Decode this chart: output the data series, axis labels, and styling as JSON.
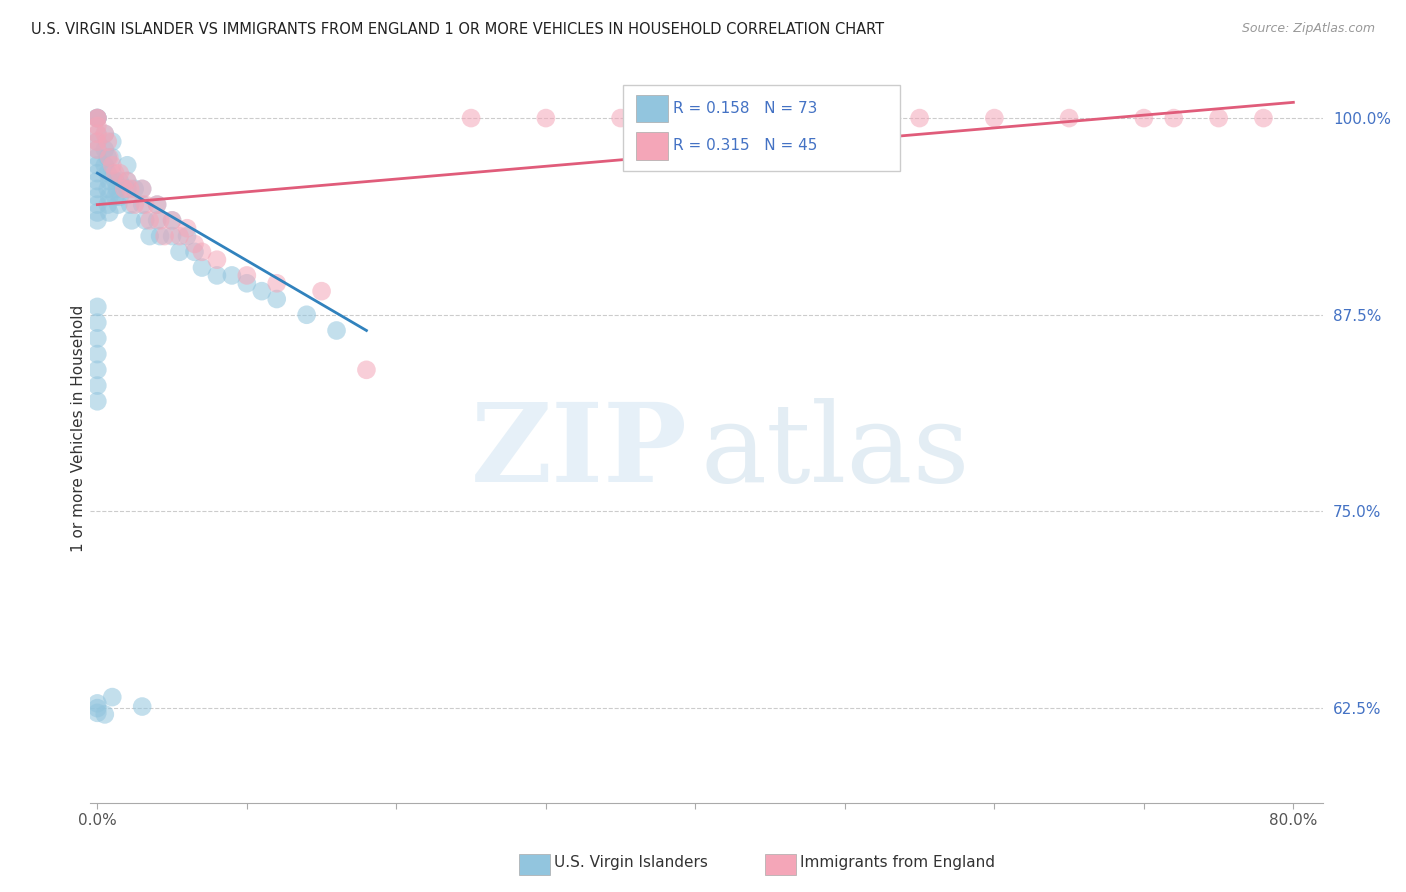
{
  "title": "U.S. VIRGIN ISLANDER VS IMMIGRANTS FROM ENGLAND 1 OR MORE VEHICLES IN HOUSEHOLD CORRELATION CHART",
  "source": "Source: ZipAtlas.com",
  "ylabel": "1 or more Vehicles in Household",
  "ytick_values": [
    0.625,
    0.75,
    0.875,
    1.0
  ],
  "ytick_labels": [
    "62.5%",
    "75.0%",
    "87.5%",
    "100.0%"
  ],
  "xlim": [
    -0.005,
    0.82
  ],
  "ylim": [
    0.565,
    1.04
  ],
  "blue_color": "#92c5de",
  "pink_color": "#f4a6b8",
  "blue_line_color": "#3182bd",
  "pink_line_color": "#e05c7a",
  "legend_R1": "0.158",
  "legend_N1": "73",
  "legend_R2": "0.315",
  "legend_N2": "45",
  "watermark_zip": "ZIP",
  "watermark_atlas": "atlas",
  "blue_scatter_x": [
    0.0,
    0.0,
    0.0,
    0.0,
    0.0,
    0.0,
    0.0,
    0.0,
    0.0,
    0.0,
    0.0,
    0.0,
    0.0,
    0.0,
    0.0,
    0.005,
    0.005,
    0.005,
    0.007,
    0.007,
    0.007,
    0.007,
    0.008,
    0.008,
    0.008,
    0.01,
    0.01,
    0.01,
    0.012,
    0.012,
    0.013,
    0.014,
    0.015,
    0.015,
    0.02,
    0.02,
    0.02,
    0.022,
    0.023,
    0.025,
    0.03,
    0.03,
    0.032,
    0.035,
    0.04,
    0.04,
    0.042,
    0.05,
    0.05,
    0.055,
    0.06,
    0.065,
    0.07,
    0.08,
    0.09,
    0.1,
    0.11,
    0.12,
    0.14,
    0.16,
    0.0,
    0.0,
    0.0,
    0.01,
    0.03,
    0.005,
    0.0,
    0.0,
    0.0,
    0.0,
    0.0,
    0.0,
    0.0
  ],
  "blue_scatter_y": [
    1.0,
    1.0,
    1.0,
    0.99,
    0.985,
    0.98,
    0.975,
    0.97,
    0.965,
    0.96,
    0.955,
    0.95,
    0.945,
    0.94,
    0.935,
    0.99,
    0.98,
    0.97,
    0.975,
    0.965,
    0.955,
    0.945,
    0.96,
    0.95,
    0.94,
    0.985,
    0.975,
    0.965,
    0.96,
    0.95,
    0.955,
    0.945,
    0.96,
    0.95,
    0.97,
    0.96,
    0.955,
    0.945,
    0.935,
    0.955,
    0.955,
    0.945,
    0.935,
    0.925,
    0.945,
    0.935,
    0.925,
    0.935,
    0.925,
    0.915,
    0.925,
    0.915,
    0.905,
    0.9,
    0.9,
    0.895,
    0.89,
    0.885,
    0.875,
    0.865,
    0.625,
    0.628,
    0.622,
    0.632,
    0.626,
    0.621,
    0.88,
    0.87,
    0.86,
    0.85,
    0.84,
    0.83,
    0.82
  ],
  "pink_scatter_x": [
    0.0,
    0.0,
    0.0,
    0.0,
    0.0,
    0.0,
    0.005,
    0.007,
    0.008,
    0.01,
    0.012,
    0.015,
    0.018,
    0.02,
    0.022,
    0.025,
    0.03,
    0.032,
    0.035,
    0.04,
    0.042,
    0.045,
    0.05,
    0.055,
    0.06,
    0.065,
    0.07,
    0.08,
    0.1,
    0.12,
    0.15,
    0.18,
    0.25,
    0.3,
    0.35,
    0.4,
    0.45,
    0.5,
    0.55,
    0.6,
    0.65,
    0.7,
    0.72,
    0.75,
    0.78
  ],
  "pink_scatter_y": [
    1.0,
    1.0,
    0.995,
    0.99,
    0.985,
    0.98,
    0.99,
    0.985,
    0.975,
    0.97,
    0.965,
    0.965,
    0.955,
    0.96,
    0.955,
    0.945,
    0.955,
    0.945,
    0.935,
    0.945,
    0.935,
    0.925,
    0.935,
    0.925,
    0.93,
    0.92,
    0.915,
    0.91,
    0.9,
    0.895,
    0.89,
    0.84,
    1.0,
    1.0,
    1.0,
    1.0,
    1.0,
    1.0,
    1.0,
    1.0,
    1.0,
    1.0,
    1.0,
    1.0,
    1.0
  ],
  "blue_trend_x0": 0.0,
  "blue_trend_x1": 0.18,
  "blue_trend_y0": 0.965,
  "blue_trend_y1": 0.865,
  "pink_trend_x0": 0.0,
  "pink_trend_x1": 0.8,
  "pink_trend_y0": 0.945,
  "pink_trend_y1": 1.01,
  "xtick_positions": [
    0.0,
    0.1,
    0.2,
    0.3,
    0.4,
    0.5,
    0.6,
    0.7,
    0.8
  ],
  "bottom_label1": "U.S. Virgin Islanders",
  "bottom_label2": "Immigrants from England"
}
